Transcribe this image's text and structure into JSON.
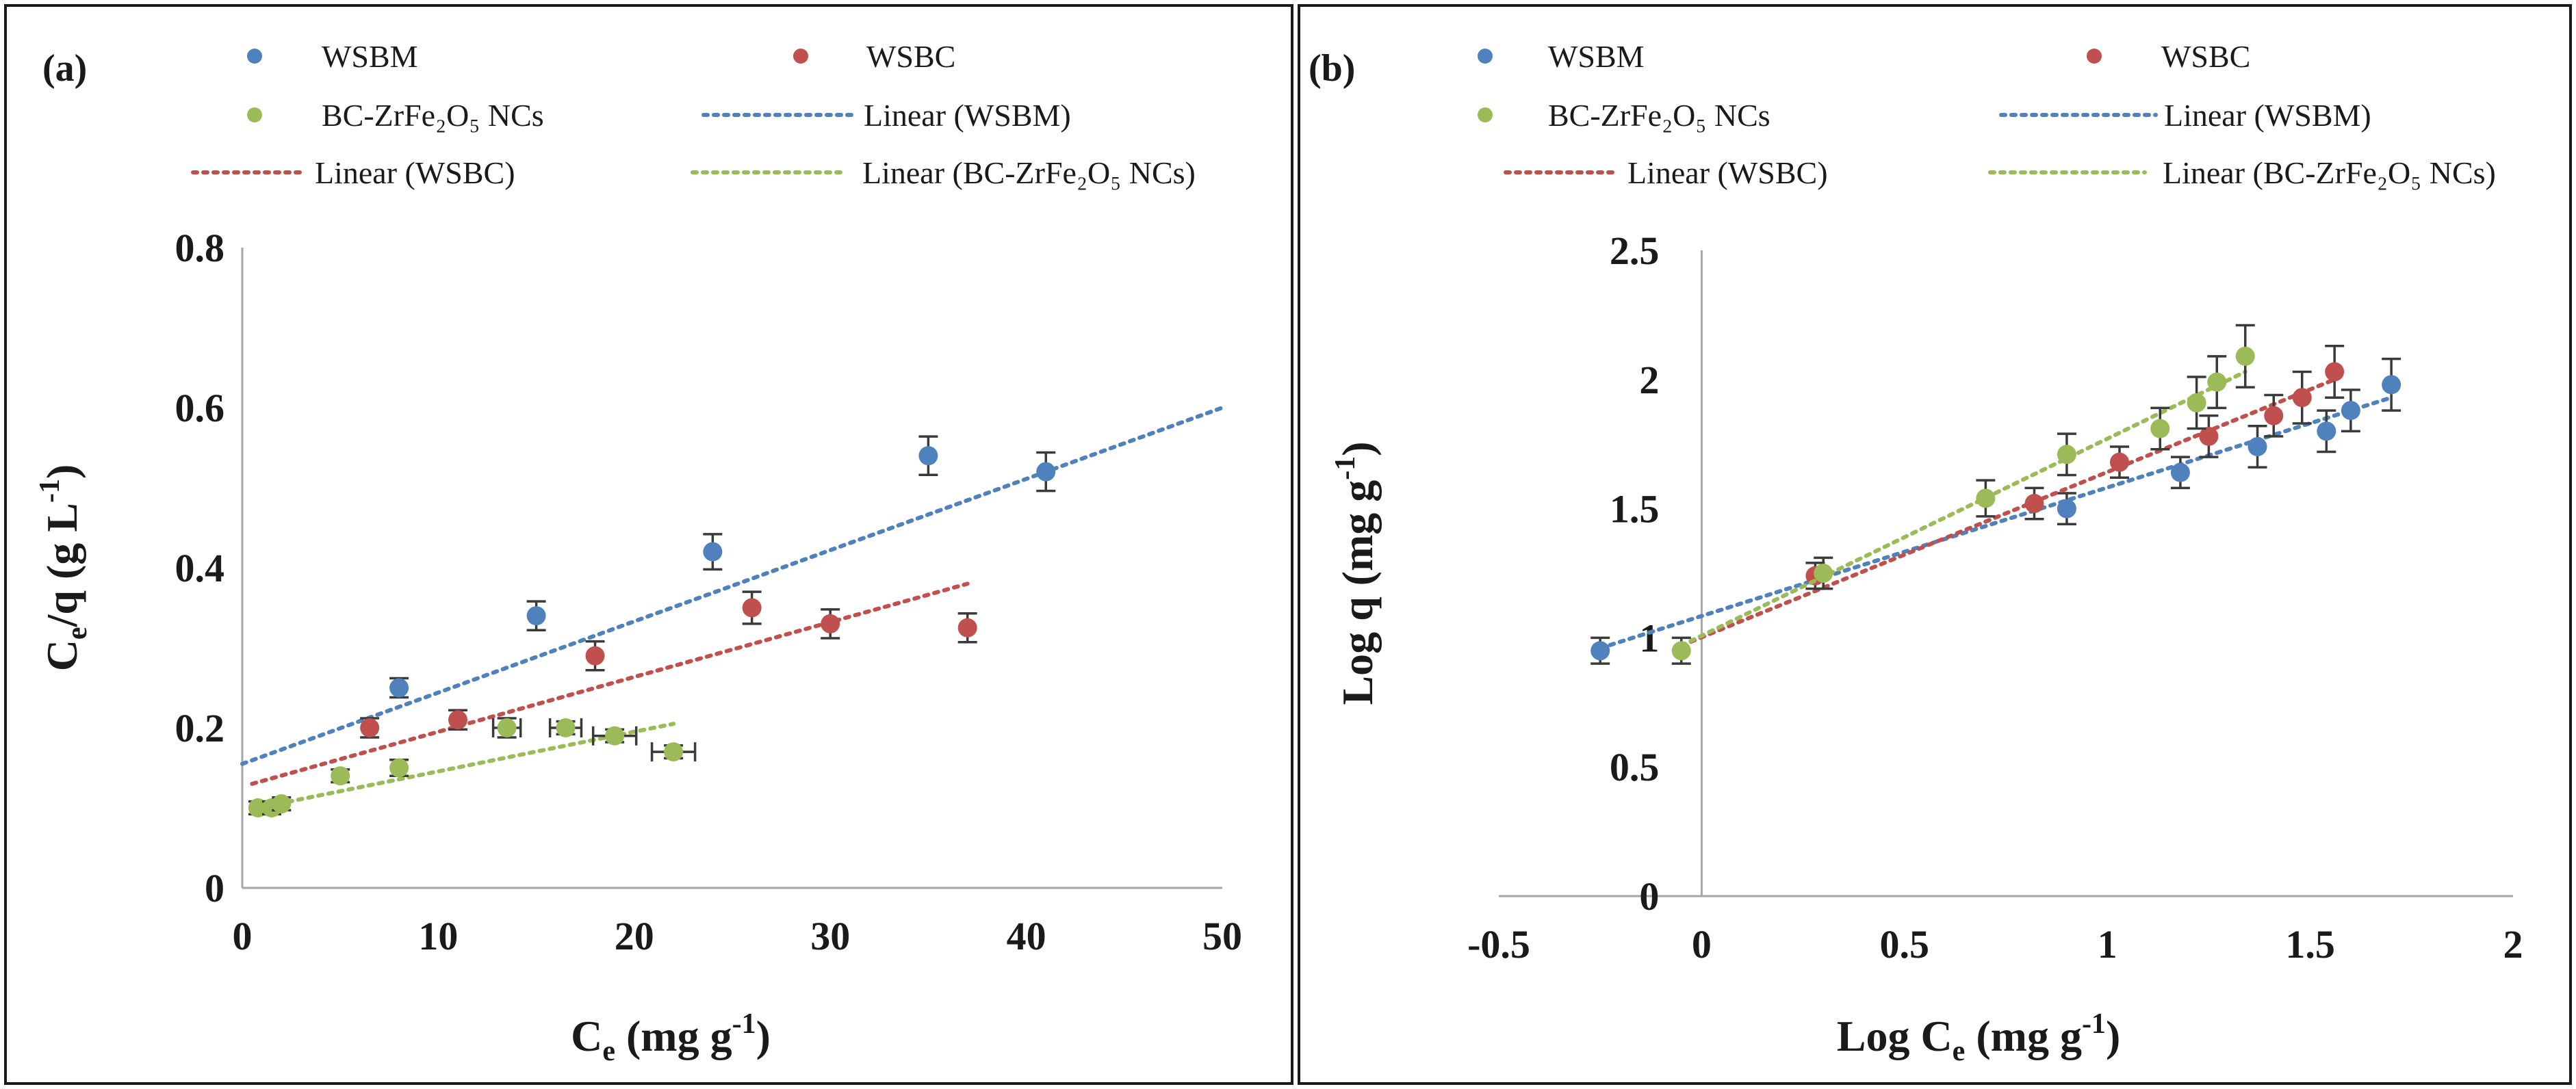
{
  "chart_data": [
    {
      "type": "scatter",
      "panel_label": "(a)",
      "xlabel_main": "C",
      "xlabel_sub": "e",
      "xlabel_rest": " (mg g",
      "xlabel_sup": "-1",
      "xlabel_end": ")",
      "ylabel_main": "C",
      "ylabel_sub": "e",
      "ylabel_rest": "/q (g L",
      "ylabel_sup": "-1",
      "ylabel_end": ")",
      "xlim": [
        0,
        50
      ],
      "ylim": [
        0,
        0.8
      ],
      "x_ticks": [
        0,
        10,
        20,
        30,
        40,
        50
      ],
      "x_tick_labels": [
        "0",
        "10",
        "20",
        "30",
        "40",
        "50"
      ],
      "y_ticks": [
        0,
        0.2,
        0.4,
        0.6,
        0.8
      ],
      "y_tick_labels": [
        "0",
        "0.2",
        "0.4",
        "0.6",
        "0.8"
      ],
      "grid": false,
      "legend": {
        "placement": "top",
        "entries": [
          {
            "label": "WSBM",
            "kind": "marker",
            "color": "#4f81bd"
          },
          {
            "label": "WSBC",
            "kind": "marker",
            "color": "#c0504d"
          },
          {
            "label": "BC-ZrFe₂O₅ NCs",
            "kind": "marker",
            "color": "#9bbb59"
          },
          {
            "label": "Linear (WSBM)",
            "kind": "line",
            "color": "#4f81bd"
          },
          {
            "label": "Linear (WSBC)",
            "kind": "line",
            "color": "#c0504d"
          },
          {
            "label": "Linear (BC-ZrFe₂O₅ NCs)",
            "kind": "line",
            "color": "#9bbb59"
          }
        ]
      },
      "series": [
        {
          "name": "WSBM",
          "color": "#4f81bd",
          "x": [
            8,
            15,
            24,
            35,
            41
          ],
          "y": [
            0.25,
            0.34,
            0.42,
            0.54,
            0.52
          ],
          "yerr": [
            0.012,
            0.018,
            0.022,
            0.024,
            0.024
          ],
          "xerr": [
            0,
            0,
            0,
            0,
            0
          ],
          "trend": {
            "x": [
              0,
              50
            ],
            "y": [
              0.155,
              0.6
            ]
          }
        },
        {
          "name": "WSBC",
          "color": "#c0504d",
          "x": [
            6.5,
            11,
            18,
            26,
            30,
            37
          ],
          "y": [
            0.2,
            0.21,
            0.29,
            0.35,
            0.33,
            0.325
          ],
          "yerr": [
            0.012,
            0.012,
            0.018,
            0.02,
            0.018,
            0.018
          ],
          "xerr": [
            0,
            0,
            0,
            0,
            0,
            0
          ],
          "trend": {
            "x": [
              0.5,
              37
            ],
            "y": [
              0.13,
              0.38
            ]
          }
        },
        {
          "name": "BC-ZrFe₂O₅ NCs",
          "color": "#9bbb59",
          "x": [
            0.8,
            1.5,
            2,
            5,
            8,
            13.5,
            16.5,
            19,
            22
          ],
          "y": [
            0.1,
            0.1,
            0.105,
            0.14,
            0.15,
            0.2,
            0.2,
            0.19,
            0.17
          ],
          "yerr": [
            0.008,
            0.008,
            0.008,
            0.008,
            0.01,
            0.012,
            0.008,
            0.008,
            0.008
          ],
          "xerr": [
            0,
            0,
            0,
            0,
            0,
            0.7,
            0.8,
            1.1,
            1.1
          ],
          "trend": {
            "x": [
              0.8,
              22
            ],
            "y": [
              0.1,
              0.205
            ]
          }
        }
      ]
    },
    {
      "type": "scatter",
      "panel_label": "(b)",
      "xlabel_main": "Log C",
      "xlabel_sub": "e",
      "xlabel_rest": " (mg g",
      "xlabel_sup": "-1",
      "xlabel_end": ")",
      "ylabel_main": "Log q (mg g",
      "ylabel_sup": "-1",
      "ylabel_end": ")",
      "xlim": [
        -0.5,
        2
      ],
      "ylim": [
        0,
        2.5
      ],
      "x_ticks": [
        -0.5,
        0,
        0.5,
        1,
        1.5,
        2
      ],
      "x_tick_labels": [
        "-0.5",
        "0",
        "0.5",
        "1",
        "1.5",
        "2"
      ],
      "y_ticks": [
        0,
        0.5,
        1,
        1.5,
        2,
        2.5
      ],
      "y_tick_labels": [
        "0",
        "0.5",
        "1",
        "1.5",
        "2",
        "2.5"
      ],
      "grid": false,
      "legend": {
        "placement": "top",
        "entries": [
          {
            "label": "WSBM",
            "kind": "marker",
            "color": "#4f81bd"
          },
          {
            "label": "WSBC",
            "kind": "marker",
            "color": "#c0504d"
          },
          {
            "label": "BC-ZrFe₂O₅ NCs",
            "kind": "marker",
            "color": "#9bbb59"
          },
          {
            "label": "Linear (WSBM)",
            "kind": "line",
            "color": "#4f81bd"
          },
          {
            "label": "Linear (WSBC)",
            "kind": "line",
            "color": "#c0504d"
          },
          {
            "label": "Linear (BC-ZrFe₂O₅ NCs)",
            "kind": "line",
            "color": "#9bbb59"
          }
        ]
      },
      "series": [
        {
          "name": "WSBM",
          "color": "#4f81bd",
          "x": [
            -0.25,
            0.9,
            1.18,
            1.37,
            1.54,
            1.6,
            1.7
          ],
          "y": [
            0.95,
            1.5,
            1.64,
            1.74,
            1.8,
            1.88,
            1.98
          ],
          "yerr": [
            0.05,
            0.06,
            0.06,
            0.08,
            0.08,
            0.08,
            0.1
          ],
          "xerr": [
            0,
            0,
            0,
            0,
            0,
            0,
            0
          ],
          "trend": {
            "x": [
              -0.25,
              1.7
            ],
            "y": [
              0.96,
              1.93
            ]
          }
        },
        {
          "name": "WSBC",
          "color": "#c0504d",
          "x": [
            0.28,
            0.82,
            1.03,
            1.25,
            1.41,
            1.48,
            1.56
          ],
          "y": [
            1.24,
            1.52,
            1.68,
            1.78,
            1.86,
            1.93,
            2.03
          ],
          "yerr": [
            0.05,
            0.06,
            0.06,
            0.08,
            0.08,
            0.1,
            0.1
          ],
          "xerr": [
            0,
            0,
            0,
            0,
            0,
            0,
            0
          ],
          "trend": {
            "x": [
              -0.05,
              1.56
            ],
            "y": [
              0.97,
              2.0
            ]
          }
        },
        {
          "name": "BC-ZrFe₂O₅ NCs",
          "color": "#9bbb59",
          "x": [
            -0.05,
            0.3,
            0.7,
            0.9,
            1.13,
            1.22,
            1.27,
            1.34
          ],
          "y": [
            0.95,
            1.25,
            1.54,
            1.71,
            1.81,
            1.91,
            1.99,
            2.09
          ],
          "yerr": [
            0.05,
            0.06,
            0.07,
            0.08,
            0.08,
            0.1,
            0.1,
            0.12
          ],
          "xerr": [
            0,
            0,
            0,
            0,
            0,
            0,
            0,
            0
          ],
          "trend": {
            "x": [
              -0.05,
              1.34
            ],
            "y": [
              0.97,
              2.03
            ]
          }
        }
      ]
    }
  ]
}
